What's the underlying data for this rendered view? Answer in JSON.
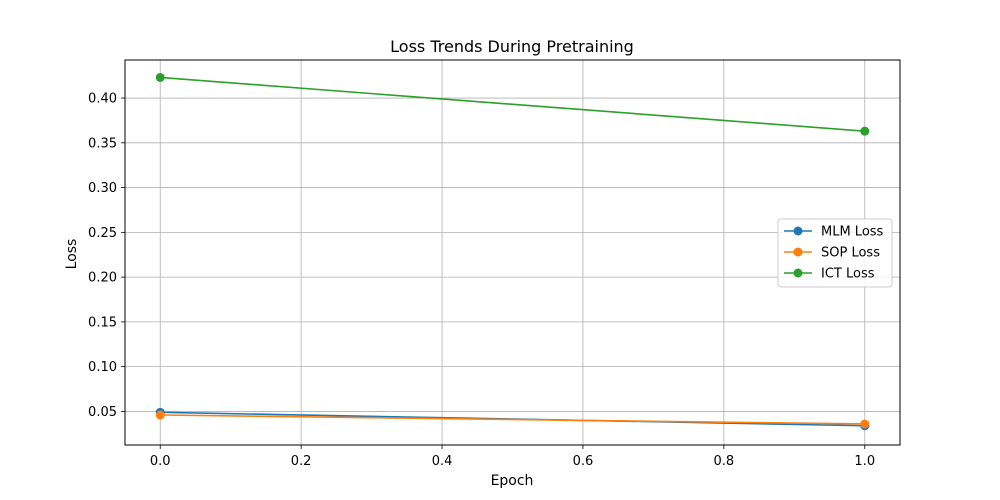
{
  "chart_data": {
    "type": "line",
    "title": "Loss Trends During Pretraining",
    "xlabel": "Epoch",
    "ylabel": "Loss",
    "x": [
      0,
      1
    ],
    "xlim": [
      -0.05,
      1.05
    ],
    "ylim": [
      0.0125,
      0.4425
    ],
    "xticks": [
      0.0,
      0.2,
      0.4,
      0.6,
      0.8,
      1.0
    ],
    "xtick_labels": [
      "0.0",
      "0.2",
      "0.4",
      "0.6",
      "0.8",
      "1.0"
    ],
    "yticks": [
      0.05,
      0.1,
      0.15,
      0.2,
      0.25,
      0.3,
      0.35,
      0.4
    ],
    "ytick_labels": [
      "0.05",
      "0.10",
      "0.15",
      "0.20",
      "0.25",
      "0.30",
      "0.35",
      "0.40"
    ],
    "grid": true,
    "legend_position": "center-right",
    "series": [
      {
        "name": "MLM Loss",
        "values": [
          0.049,
          0.034
        ],
        "color": "#1f77b4",
        "marker": "circle"
      },
      {
        "name": "SOP Loss",
        "values": [
          0.046,
          0.036
        ],
        "color": "#ff7f0e",
        "marker": "circle"
      },
      {
        "name": "ICT Loss",
        "values": [
          0.423,
          0.363
        ],
        "color": "#2ca02c",
        "marker": "circle"
      }
    ]
  }
}
